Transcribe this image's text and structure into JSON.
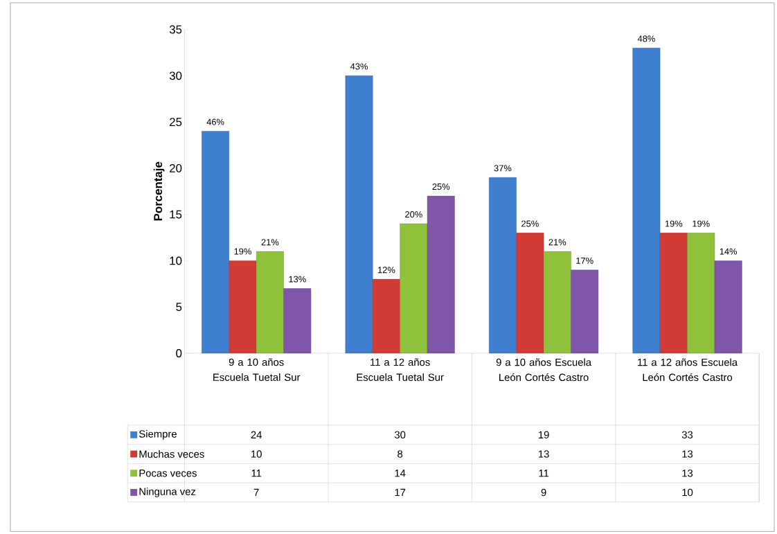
{
  "chart_data": {
    "type": "bar",
    "ylabel": "Porcentaje",
    "categories": [
      "9 a 10 años Escuela Tuetal Sur",
      "11 a 12 años Escuela Tuetal Sur",
      "9 a 10 años Escuela León Cortés Castro",
      "11 a 12 años Escuela León Cortés Castro"
    ],
    "series": [
      {
        "name": "Siempre",
        "color": "#3f7fcf",
        "values": [
          24,
          30,
          19,
          33
        ]
      },
      {
        "name": "Muchas veces",
        "color": "#d23a36",
        "values": [
          10,
          8,
          13,
          13
        ]
      },
      {
        "name": "Pocas veces",
        "color": "#8fc23a",
        "values": [
          11,
          14,
          11,
          13
        ]
      },
      {
        "name": "Ninguna vez",
        "color": "#7f56a8",
        "values": [
          7,
          17,
          9,
          10
        ]
      }
    ],
    "annotations": [
      "46%",
      "43%",
      "37%",
      "48%",
      "19%",
      "12%",
      "25%",
      "19%",
      "21%",
      "20%",
      "21%",
      "19%",
      "13%",
      "25%",
      "17%",
      "14%"
    ],
    "ylim": [
      0,
      35
    ],
    "yticks": [
      0,
      5,
      10,
      15,
      20,
      25,
      30,
      35
    ],
    "legend": "bottom",
    "data_labels": true
  }
}
